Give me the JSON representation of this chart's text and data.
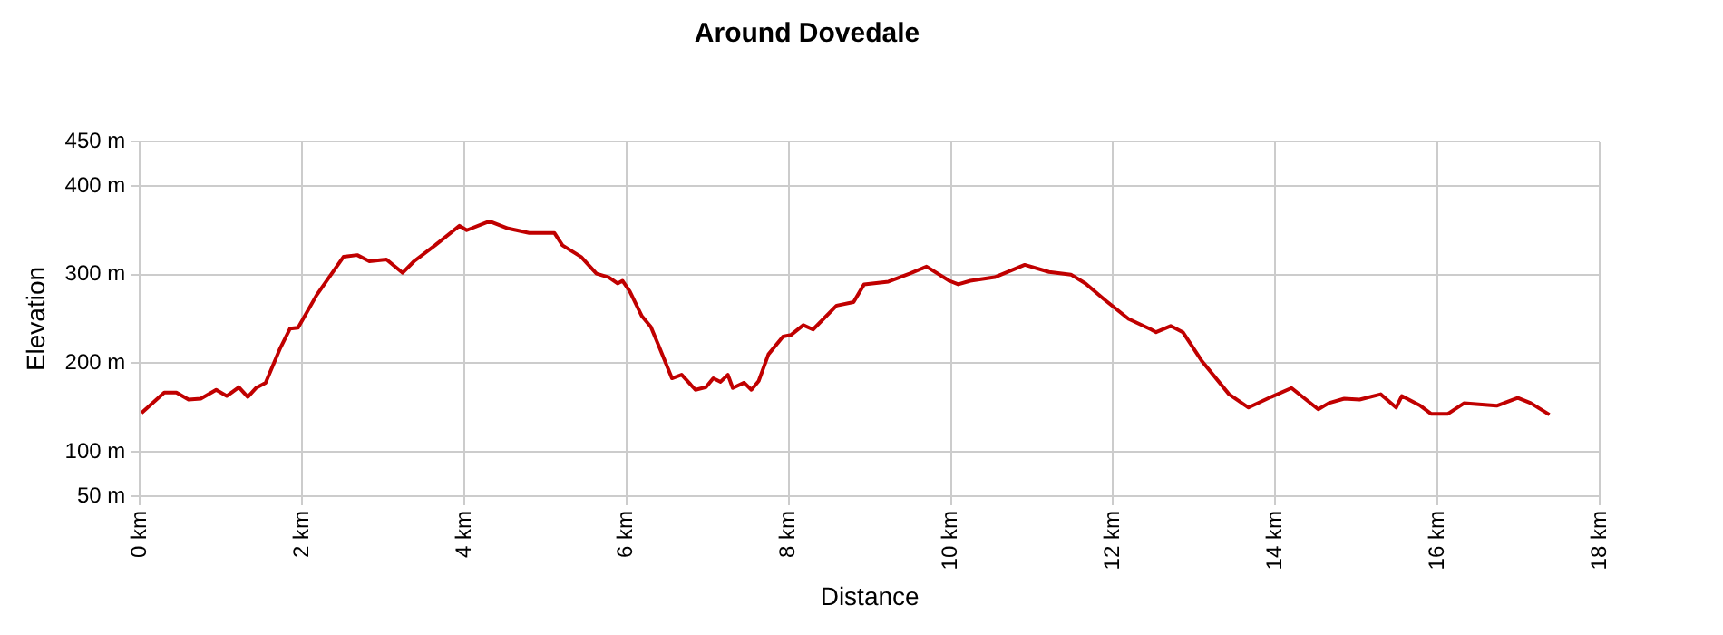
{
  "chart_data": {
    "type": "line",
    "title": "Around Dovedale",
    "xlabel": "Distance",
    "ylabel": "Elevation",
    "x": [
      0.02,
      0.3,
      0.45,
      0.6,
      0.75,
      0.94,
      1.07,
      1.22,
      1.33,
      1.43,
      1.55,
      1.73,
      1.85,
      1.95,
      2.18,
      2.51,
      2.68,
      2.83,
      3.04,
      3.24,
      3.38,
      3.64,
      3.94,
      4.03,
      4.31,
      4.54,
      4.8,
      5.11,
      5.21,
      5.44,
      5.63,
      5.78,
      5.89,
      5.95,
      6.04,
      6.19,
      6.3,
      6.4,
      6.56,
      6.68,
      6.85,
      6.98,
      7.07,
      7.16,
      7.25,
      7.31,
      7.45,
      7.54,
      7.63,
      7.75,
      7.93,
      8.03,
      8.18,
      8.3,
      8.59,
      8.8,
      8.93,
      9.23,
      9.49,
      9.7,
      9.98,
      10.09,
      10.24,
      10.54,
      10.91,
      11.21,
      11.48,
      11.66,
      11.89,
      12.19,
      12.47,
      12.53,
      12.71,
      12.86,
      13.09,
      13.43,
      13.67,
      13.95,
      14.2,
      14.53,
      14.66,
      14.85,
      15.04,
      15.3,
      15.49,
      15.56,
      15.79,
      15.92,
      16.13,
      16.33,
      16.73,
      16.99,
      17.15,
      17.38
    ],
    "series": [
      {
        "color": "#c00000",
        "values": [
          144,
          167,
          167,
          159,
          160,
          170,
          163,
          173,
          162,
          172,
          178,
          217,
          239,
          240,
          277,
          320,
          322,
          315,
          317,
          302,
          315,
          333,
          355,
          350,
          360,
          352,
          347,
          347,
          333,
          320,
          301,
          297,
          290,
          293,
          281,
          253,
          241,
          219,
          183,
          187,
          170,
          173,
          183,
          179,
          187,
          172,
          178,
          170,
          180,
          210,
          230,
          232,
          243,
          238,
          265,
          269,
          289,
          292,
          301,
          309,
          293,
          289,
          293,
          297,
          311,
          303,
          300,
          290,
          272,
          250,
          238,
          235,
          242,
          235,
          203,
          165,
          150,
          162,
          172,
          148,
          155,
          160,
          159,
          165,
          150,
          163,
          152,
          143,
          143,
          155,
          152,
          161,
          155,
          142
        ]
      }
    ],
    "xlim": [
      0,
      18
    ],
    "xticks": [
      {
        "value": 0,
        "label": "0 km"
      },
      {
        "value": 2,
        "label": "2 km"
      },
      {
        "value": 4,
        "label": "4 km"
      },
      {
        "value": 6,
        "label": "6 km"
      },
      {
        "value": 8,
        "label": "8 km"
      },
      {
        "value": 10,
        "label": "10 km"
      },
      {
        "value": 12,
        "label": "12 km"
      },
      {
        "value": 14,
        "label": "14 km"
      },
      {
        "value": 16,
        "label": "16 km"
      },
      {
        "value": 18,
        "label": "18 km"
      }
    ],
    "ylim": [
      50,
      450
    ],
    "yticks": [
      {
        "value": 50,
        "label": "50 m"
      },
      {
        "value": 100,
        "label": "100 m"
      },
      {
        "value": 200,
        "label": "200 m"
      },
      {
        "value": 300,
        "label": "300 m"
      },
      {
        "value": 400,
        "label": "400 m"
      },
      {
        "value": 450,
        "label": "450 m"
      }
    ],
    "grid": true,
    "legend": false,
    "marker": "none",
    "line_style": "solid"
  }
}
